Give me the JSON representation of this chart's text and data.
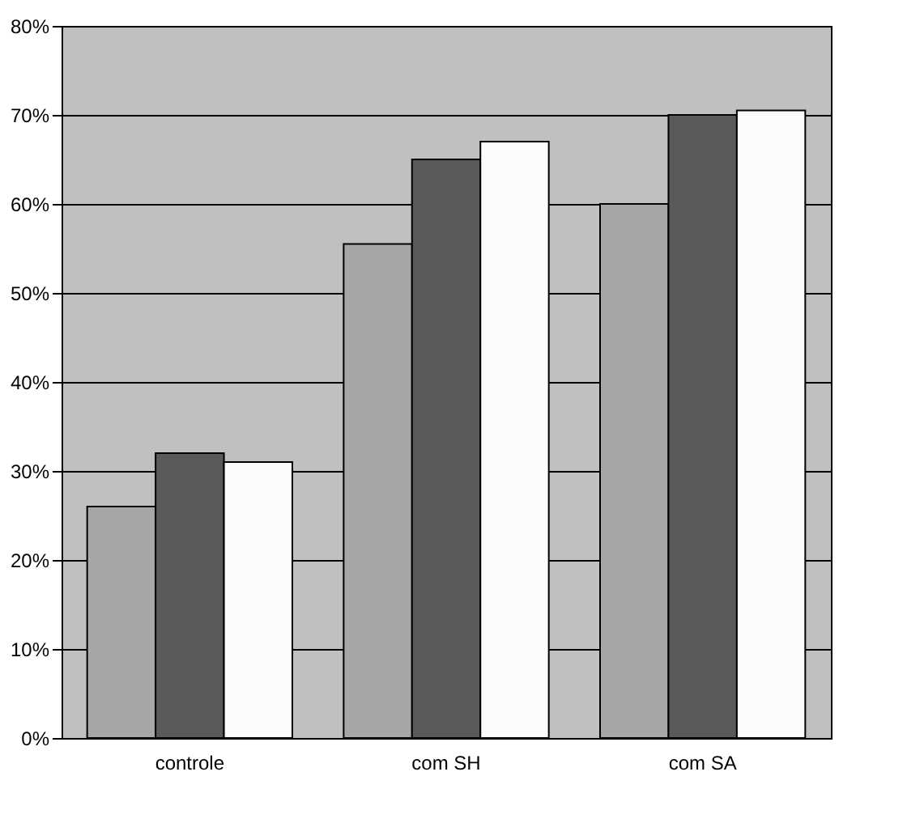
{
  "chart_data": {
    "type": "bar",
    "categories": [
      "controle",
      "com SH",
      "com SA"
    ],
    "series": [
      {
        "color": "#a6a6a6",
        "values": [
          26,
          55.5,
          60
        ]
      },
      {
        "color": "#5a5a5a",
        "values": [
          32,
          65,
          70
        ]
      },
      {
        "color": "#fcfcfc",
        "values": [
          31,
          67,
          70.5
        ]
      }
    ],
    "ylim": [
      0,
      80
    ],
    "yticks": [
      {
        "value": 0,
        "label": "0%"
      },
      {
        "value": 10,
        "label": "10%"
      },
      {
        "value": 20,
        "label": "20%"
      },
      {
        "value": 30,
        "label": "30%"
      },
      {
        "value": 40,
        "label": "40%"
      },
      {
        "value": 50,
        "label": "50%"
      },
      {
        "value": 60,
        "label": "60%"
      },
      {
        "value": 70,
        "label": "70%"
      },
      {
        "value": 80,
        "label": "80%"
      }
    ],
    "grid": "y",
    "legend": false
  }
}
